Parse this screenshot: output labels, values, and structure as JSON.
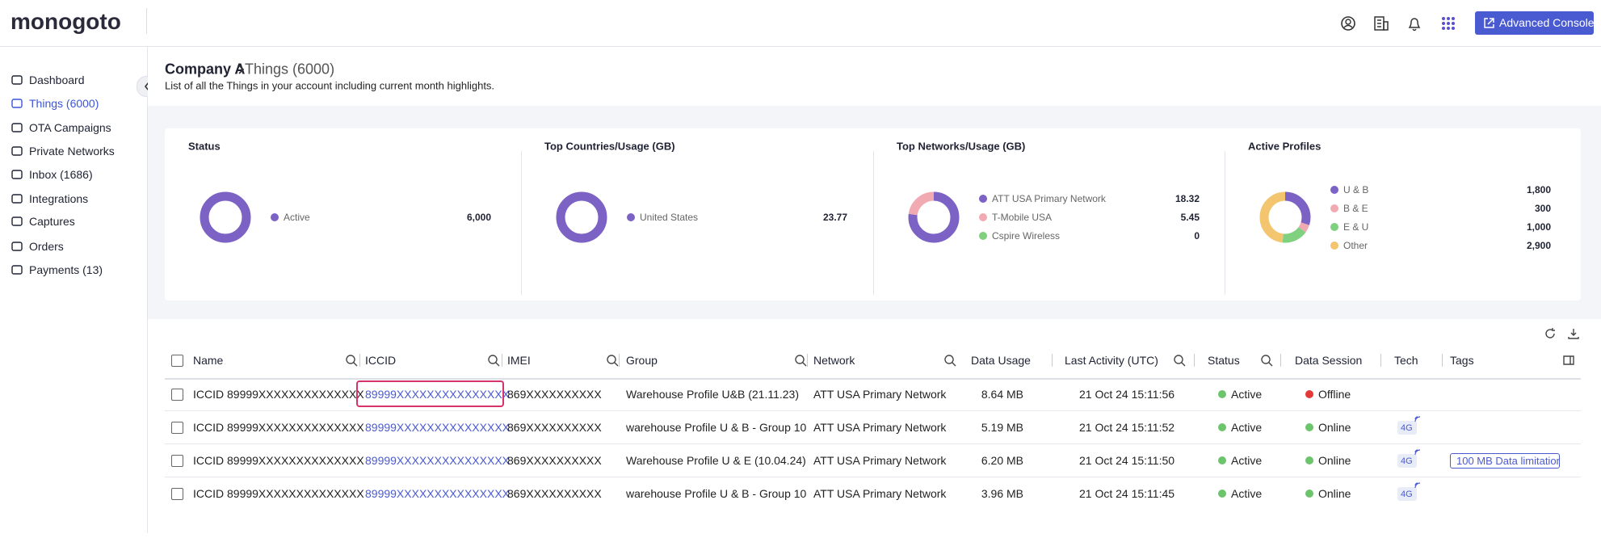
{
  "header": {
    "logo": "monogoto",
    "button": "Advanced Console"
  },
  "sidebar": {
    "items": [
      {
        "label": "Dashboard"
      },
      {
        "label": "Things (6000)",
        "selected": true
      },
      {
        "label": "OTA Campaigns"
      },
      {
        "label": "Private Networks"
      },
      {
        "label": "Inbox (1686)"
      },
      {
        "label": "Integrations"
      },
      {
        "label": "Captures"
      },
      {
        "label": "Orders"
      },
      {
        "label": "Payments (13)"
      }
    ]
  },
  "page": {
    "company": "Company A",
    "title": "Things (6000)",
    "subtitle": "List of all the Things in your account including current month highlights."
  },
  "cards": [
    {
      "title": "Status",
      "items": [
        {
          "label": "Active",
          "value": {
            "value": 6000,
            "label": "6,000"
          },
          "color": "#7b62c4"
        }
      ]
    },
    {
      "title": "Top Countries/Usage (GB)",
      "items": [
        {
          "label": "United States",
          "value": 23.77,
          "color": "#7b62c4"
        }
      ]
    },
    {
      "title": "Top Networks/Usage (GB)",
      "items": [
        {
          "label": "ATT USA Primary Network",
          "value": 18.32,
          "color": "#7b62c4"
        },
        {
          "label": "T-Mobile USA",
          "value": 5.45,
          "color": "#f2aab2"
        },
        {
          "label": "Cspire Wireless",
          "value": 0,
          "color": "#7fd07f"
        }
      ]
    },
    {
      "title": "Active Profiles",
      "items": [
        {
          "label": "U & B",
          "value": {
            "value": 1800,
            "label": "1,800"
          },
          "color": "#7b62c4"
        },
        {
          "label": "B & E",
          "value": 300,
          "color": "#f2aab2"
        },
        {
          "label": "E & U",
          "value": {
            "value": 1000,
            "label": "1,000"
          },
          "color": "#7fd07f"
        },
        {
          "label": "Other",
          "value": {
            "value": 2900,
            "label": "2,900"
          },
          "color": "#f2c56e"
        }
      ]
    }
  ],
  "table": {
    "columns": [
      "Name",
      "ICCID",
      "IMEI",
      "Group",
      "Network",
      "Data Usage",
      "Last Activity (UTC)",
      "Status",
      "Data Session",
      "Tech",
      "Tags"
    ],
    "rows": [
      {
        "name": "ICCID 89999XXXXXXXXXXXXXX",
        "iccid": "89999XXXXXXXXXXXXXXX",
        "imei": "869XXXXXXXXXX",
        "group": "Warehouse Profile U&B (21.11.23)",
        "network": "ATT USA Primary Network",
        "data_usage": "8.64 MB",
        "last_activity": "21 Oct 24 15:11:56",
        "status": "Active",
        "status_color": "#6cc46c",
        "data_session": "Offline",
        "session_color": "#e53935"
      },
      {
        "name": "ICCID 89999XXXXXXXXXXXXXX",
        "iccid": "89999XXXXXXXXXXXXXXX",
        "imei": "869XXXXXXXXXX",
        "group": "warehouse Profile U & B - Group 10",
        "network": "ATT USA Primary Network",
        "data_usage": "5.19 MB",
        "last_activity": "21 Oct 24 15:11:52",
        "status": "Active",
        "status_color": "#6cc46c",
        "data_session": "Online",
        "session_color": "#6cc46c",
        "tech": "4G"
      },
      {
        "name": "ICCID 89999XXXXXXXXXXXXXX",
        "iccid": "89999XXXXXXXXXXXXXXX",
        "imei": "869XXXXXXXXXX",
        "group": "Warehouse Profile U & E (10.04.24)",
        "network": "ATT USA Primary Network",
        "data_usage": "6.20 MB",
        "last_activity": "21 Oct 24 15:11:50",
        "status": "Active",
        "status_color": "#6cc46c",
        "data_session": "Online",
        "session_color": "#6cc46c",
        "tech": "4G",
        "tags": "100 MB Data limitation"
      },
      {
        "name": "ICCID 89999XXXXXXXXXXXXXX",
        "iccid": "89999XXXXXXXXXXXXXXX",
        "imei": "869XXXXXXXXXX",
        "group": "warehouse Profile U & B - Group 10",
        "network": "ATT USA Primary Network",
        "data_usage": "3.96 MB",
        "last_activity": "21 Oct 24 15:11:45",
        "status": "Active",
        "status_color": "#6cc46c",
        "data_session": "Online",
        "session_color": "#6cc46c",
        "tech": "4G"
      }
    ]
  }
}
